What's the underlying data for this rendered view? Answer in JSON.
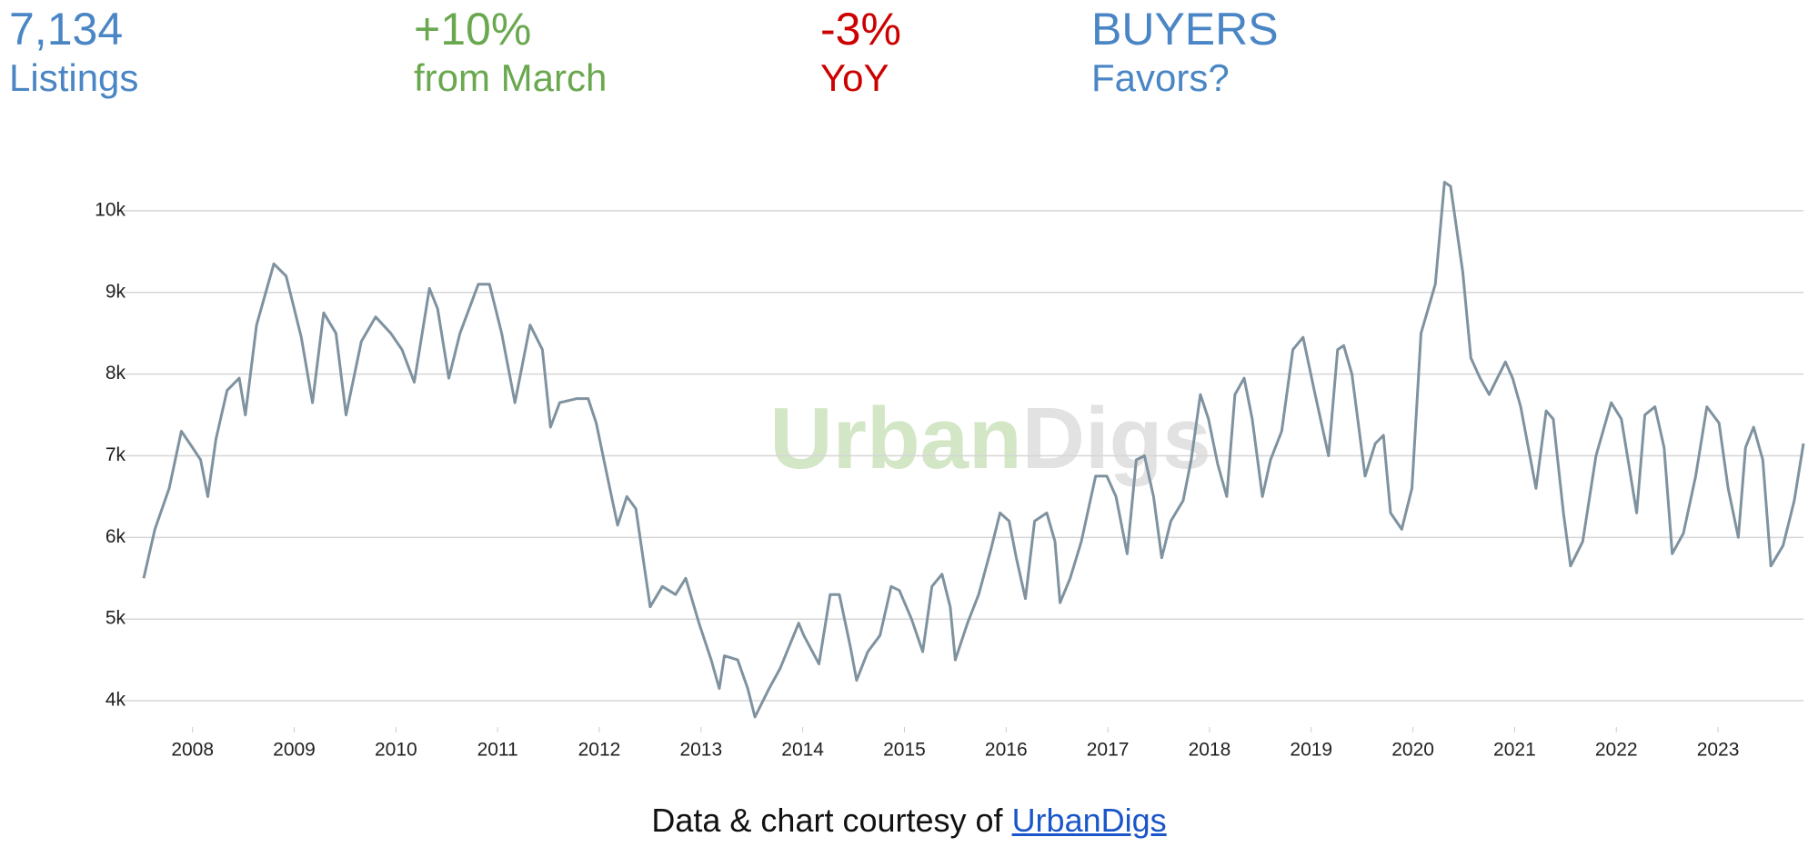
{
  "stats": [
    {
      "value": "7,134",
      "label": "Listings",
      "color": "#4a86c5"
    },
    {
      "value": "+10%",
      "label": "from March",
      "color": "#6aa84f"
    },
    {
      "value": "-3%",
      "label": "YoY",
      "color": "#cc0000"
    },
    {
      "value": "BUYERS",
      "label": "Favors?",
      "color": "#4a86c5"
    }
  ],
  "chart_data": {
    "type": "line",
    "color": "#7f929f",
    "grid": true,
    "watermark": [
      "Urban",
      "Digs"
    ],
    "xlim": [
      2007.52,
      2023.84
    ],
    "xticks": [
      2008,
      2009,
      2010,
      2011,
      2012,
      2013,
      2014,
      2015,
      2016,
      2017,
      2018,
      2019,
      2020,
      2021,
      2022,
      2023
    ],
    "ylim": [
      3700,
      10500
    ],
    "yticks": [
      {
        "value": 4000,
        "label": "4k"
      },
      {
        "value": 5000,
        "label": "5k"
      },
      {
        "value": 6000,
        "label": "6k"
      },
      {
        "value": 7000,
        "label": "7k"
      },
      {
        "value": 8000,
        "label": "8k"
      },
      {
        "value": 9000,
        "label": "9k"
      },
      {
        "value": 10000,
        "label": "10k"
      }
    ],
    "x": [
      2007.52,
      2007.63,
      2007.77,
      2007.89,
      2008.0,
      2008.08,
      2008.15,
      2008.23,
      2008.34,
      2008.46,
      2008.52,
      2008.63,
      2008.8,
      2008.92,
      2009.07,
      2009.18,
      2009.29,
      2009.41,
      2009.51,
      2009.66,
      2009.8,
      2009.95,
      2010.06,
      2010.18,
      2010.33,
      2010.41,
      2010.52,
      2010.63,
      2010.81,
      2010.92,
      2011.04,
      2011.17,
      2011.32,
      2011.44,
      2011.52,
      2011.61,
      2011.78,
      2011.89,
      2011.97,
      2012.07,
      2012.18,
      2012.27,
      2012.36,
      2012.5,
      2012.62,
      2012.75,
      2012.85,
      2012.98,
      2013.1,
      2013.18,
      2013.23,
      2013.36,
      2013.46,
      2013.53,
      2013.67,
      2013.78,
      2013.96,
      2014.01,
      2014.16,
      2014.27,
      2014.36,
      2014.47,
      2014.53,
      2014.64,
      2014.76,
      2014.87,
      2014.95,
      2015.07,
      2015.18,
      2015.27,
      2015.37,
      2015.45,
      2015.5,
      2015.62,
      2015.73,
      2015.85,
      2015.94,
      2016.03,
      2016.1,
      2016.19,
      2016.28,
      2016.4,
      2016.48,
      2016.53,
      2016.63,
      2016.74,
      2016.88,
      2016.99,
      2017.08,
      2017.19,
      2017.28,
      2017.36,
      2017.45,
      2017.53,
      2017.62,
      2017.74,
      2017.82,
      2017.91,
      2017.99,
      2018.08,
      2018.17,
      2018.25,
      2018.34,
      2018.42,
      2018.52,
      2018.6,
      2018.71,
      2018.82,
      2018.92,
      2019.03,
      2019.17,
      2019.26,
      2019.32,
      2019.4,
      2019.53,
      2019.63,
      2019.71,
      2019.78,
      2019.89,
      2019.99,
      2020.08,
      2020.22,
      2020.31,
      2020.37,
      2020.49,
      2020.57,
      2020.66,
      2020.75,
      2020.83,
      2020.91,
      2020.98,
      2021.06,
      2021.21,
      2021.31,
      2021.38,
      2021.48,
      2021.55,
      2021.67,
      2021.8,
      2021.95,
      2022.05,
      2022.2,
      2022.28,
      2022.38,
      2022.47,
      2022.55,
      2022.66,
      2022.78,
      2022.89,
      2023.01,
      2023.1,
      2023.2,
      2023.27,
      2023.35,
      2023.44,
      2023.52,
      2023.64,
      2023.75,
      2023.84
    ],
    "values": [
      5500,
      6100,
      6600,
      7300,
      7100,
      6950,
      6500,
      7200,
      7800,
      7950,
      7500,
      8600,
      9350,
      9200,
      8450,
      7650,
      8750,
      8500,
      7500,
      8400,
      8700,
      8500,
      8300,
      7900,
      9050,
      8800,
      7950,
      8500,
      9100,
      9100,
      8500,
      7650,
      8600,
      8300,
      7350,
      7650,
      7700,
      7700,
      7400,
      6800,
      6150,
      6500,
      6350,
      5150,
      5400,
      5300,
      5500,
      4950,
      4500,
      4150,
      4550,
      4500,
      4150,
      3800,
      4150,
      4400,
      4950,
      4800,
      4450,
      5300,
      5300,
      4650,
      4250,
      4600,
      4800,
      5400,
      5350,
      5000,
      4600,
      5400,
      5550,
      5150,
      4500,
      4950,
      5300,
      5850,
      6300,
      6200,
      5750,
      5250,
      6200,
      6300,
      5950,
      5200,
      5500,
      5950,
      6750,
      6750,
      6500,
      5800,
      6950,
      7000,
      6500,
      5750,
      6200,
      6450,
      6950,
      7750,
      7450,
      6900,
      6500,
      7750,
      7950,
      7450,
      6500,
      6950,
      7300,
      8300,
      8450,
      7800,
      7000,
      8300,
      8350,
      8000,
      6750,
      7150,
      7250,
      6300,
      6100,
      6600,
      8500,
      9100,
      10350,
      10300,
      9250,
      8200,
      7950,
      7750,
      7950,
      8150,
      7950,
      7600,
      6600,
      7550,
      7450,
      6300,
      5650,
      5950,
      7000,
      7650,
      7450,
      6300,
      7500,
      7600,
      7100,
      5800,
      6050,
      6750,
      7600,
      7400,
      6600,
      6000,
      7100,
      7350,
      6950,
      5650,
      5900,
      6450,
      7150
    ]
  },
  "footer": {
    "text": "Data & chart courtesy of",
    "link": "UrbanDigs"
  }
}
